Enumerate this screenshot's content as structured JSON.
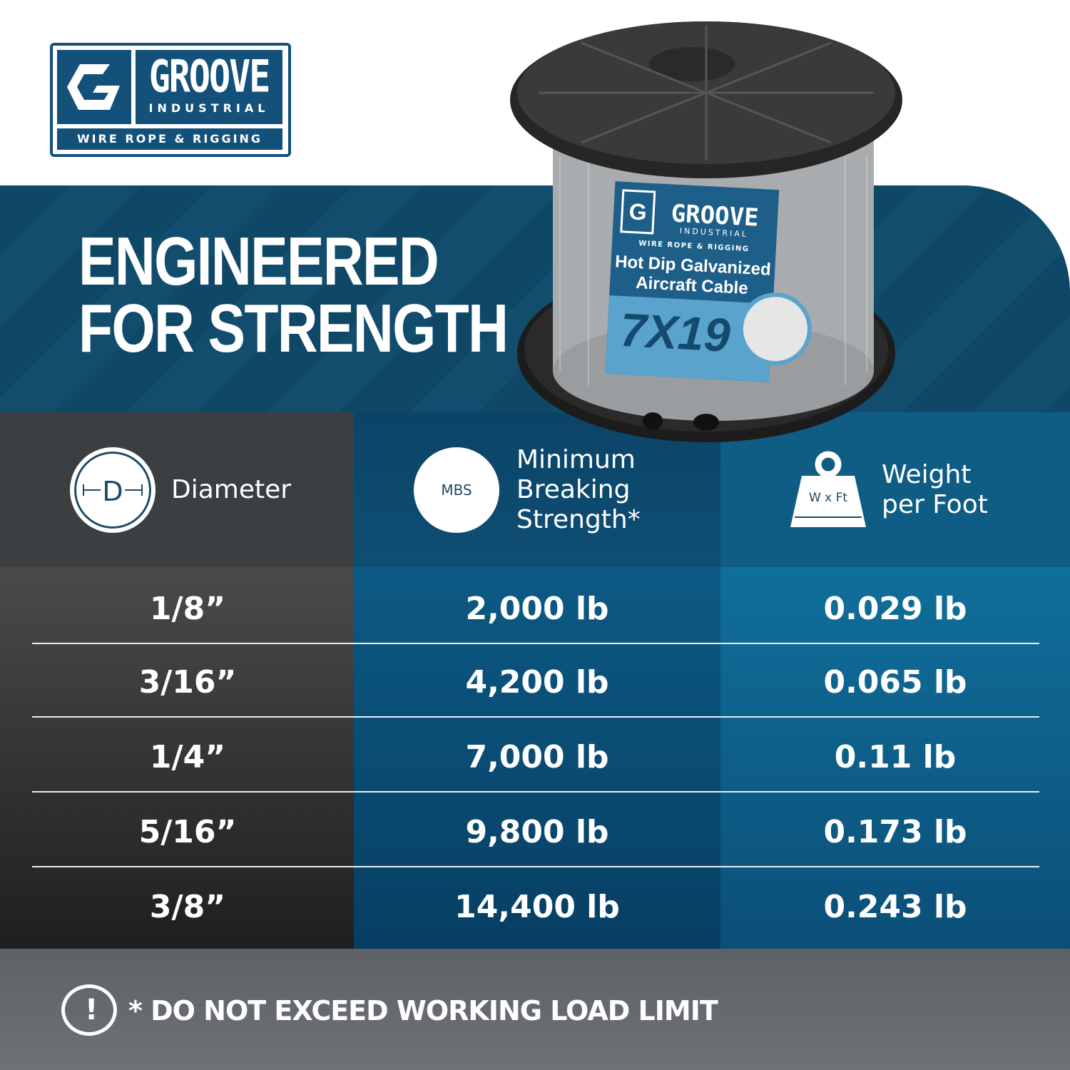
{
  "brand": {
    "name": "GROOVE",
    "sub": "INDUSTRIAL",
    "tagline": "WIRE ROPE & RIGGING",
    "color": "#14517a"
  },
  "headline": {
    "line1": "ENGINEERED",
    "line2": "FOR STRENGTH"
  },
  "product_label": {
    "brand": "GROOVE",
    "sub": "INDUSTRIAL",
    "tagline": "WIRE ROPE & RIGGING",
    "line1": "Hot Dip Galvanized",
    "line2": "Aircraft Cable",
    "construction": "7X19"
  },
  "table": {
    "headers": [
      {
        "icon": "diameter-icon",
        "icon_text": "D",
        "label": "Diameter"
      },
      {
        "icon": "mbs-rope-icon",
        "icon_text": "MBS",
        "label_lines": [
          "Minimum",
          "Breaking",
          "Strength*"
        ]
      },
      {
        "icon": "weight-icon",
        "icon_text": "W x Ft",
        "label_lines": [
          "Weight",
          "per Foot"
        ]
      }
    ],
    "rows": [
      {
        "diameter": "1/8”",
        "mbs": "2,000 lb",
        "weight": "0.029 lb"
      },
      {
        "diameter": "3/16”",
        "mbs": "4,200 lb",
        "weight": "0.065 lb"
      },
      {
        "diameter": "1/4”",
        "mbs": "7,000 lb",
        "weight": "0.11 lb"
      },
      {
        "diameter": "5/16”",
        "mbs": "9,800 lb",
        "weight": "0.173 lb"
      },
      {
        "diameter": "3/8”",
        "mbs": "14,400 lb",
        "weight": "0.243 lb"
      }
    ]
  },
  "footer": {
    "icon": "warning-icon",
    "note": "* DO NOT EXCEED WORKING LOAD LIMIT"
  }
}
